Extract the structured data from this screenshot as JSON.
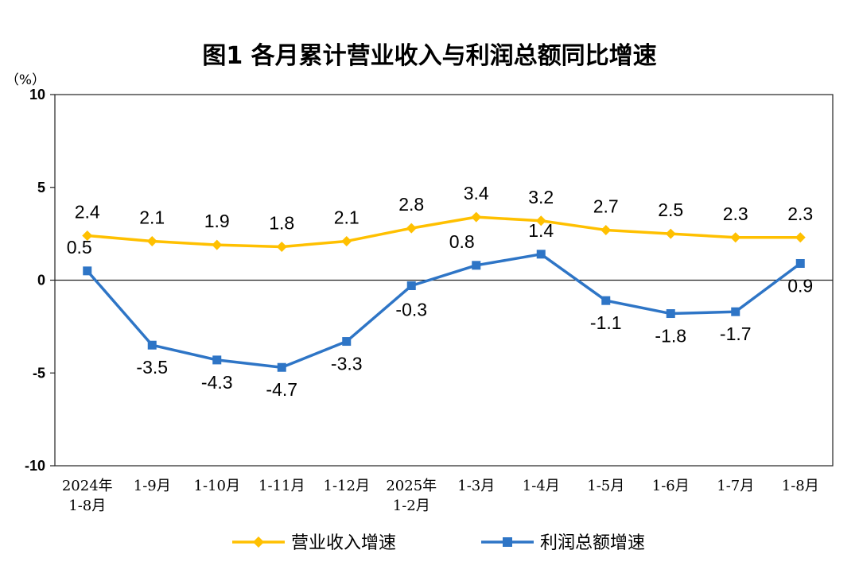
{
  "chart_data": {
    "type": "line",
    "title": "图1  各月累计营业收入与利润总额同比增速",
    "ylabel": "（%）",
    "xlabel": "",
    "ylim": [
      -10,
      10
    ],
    "yticks": [
      "10",
      "5",
      "0",
      "-5",
      "-10"
    ],
    "ytick_values": [
      10,
      5,
      0,
      -5,
      -10
    ],
    "grid": false,
    "legend_position": "bottom",
    "categories": [
      [
        "2024年",
        "1-8月"
      ],
      [
        "1-9月"
      ],
      [
        "1-10月"
      ],
      [
        "1-11月"
      ],
      [
        "1-12月"
      ],
      [
        "2025年",
        "1-2月"
      ],
      [
        "1-3月"
      ],
      [
        "1-4月"
      ],
      [
        "1-5月"
      ],
      [
        "1-6月"
      ],
      [
        "1-7月"
      ],
      [
        "1-8月"
      ]
    ],
    "series": [
      {
        "name": "营业收入增速",
        "color": "#FFC000",
        "marker": "diamond",
        "values": [
          2.4,
          2.1,
          1.9,
          1.8,
          2.1,
          2.8,
          3.4,
          3.2,
          2.7,
          2.5,
          2.3,
          2.3
        ],
        "labels": [
          "2.4",
          "2.1",
          "1.9",
          "1.8",
          "2.1",
          "2.8",
          "3.4",
          "3.2",
          "2.7",
          "2.5",
          "2.3",
          "2.3"
        ]
      },
      {
        "name": "利润总额增速",
        "color": "#2E75C6",
        "marker": "square",
        "values": [
          0.5,
          -3.5,
          -4.3,
          -4.7,
          -3.3,
          -0.3,
          0.8,
          1.4,
          -1.1,
          -1.8,
          -1.7,
          0.9
        ],
        "labels": [
          "0.5",
          "-3.5",
          "-4.3",
          "-4.7",
          "-3.3",
          "-0.3",
          "0.8",
          "1.4",
          "-1.1",
          "-1.8",
          "-1.7",
          "0.9"
        ]
      }
    ]
  }
}
